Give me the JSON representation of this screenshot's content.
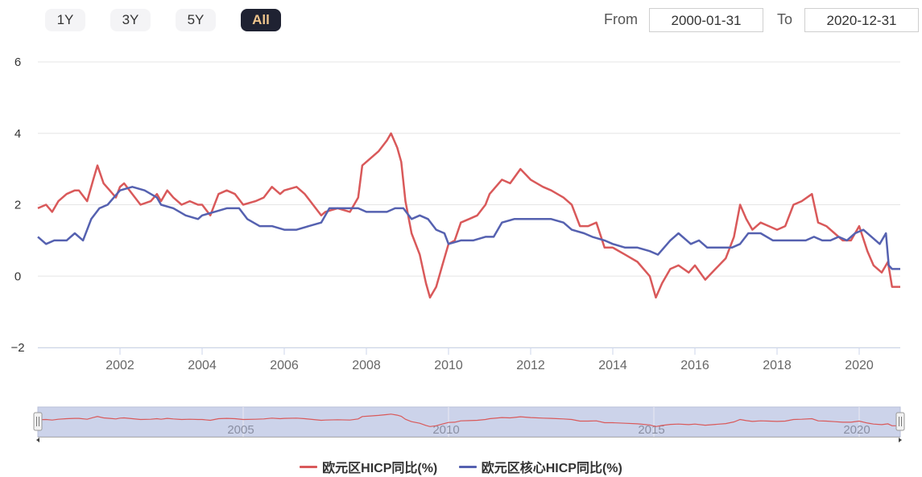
{
  "toolbar": {
    "range_buttons": [
      {
        "label": "1Y",
        "active": false
      },
      {
        "label": "3Y",
        "active": false
      },
      {
        "label": "5Y",
        "active": false
      },
      {
        "label": "All",
        "active": true
      }
    ],
    "from_label": "From",
    "from_value": "2000-01-31",
    "to_label": "To",
    "to_value": "2020-12-31"
  },
  "chart_data": {
    "type": "line",
    "xlim": [
      2000.0,
      2021.0
    ],
    "ylim": [
      -2,
      6
    ],
    "y_ticks": [
      "6",
      "4",
      "2",
      "0",
      "−2"
    ],
    "x_ticks": [
      "2002",
      "2004",
      "2006",
      "2008",
      "2010",
      "2012",
      "2014",
      "2016",
      "2018",
      "2020"
    ],
    "navigator_ticks": [
      "2005",
      "2010",
      "2015",
      "2020"
    ],
    "legend_position": "bottom",
    "grid": true,
    "series": [
      {
        "name": "欧元区HICP同比(%)",
        "color": "#d9595a",
        "points": [
          [
            2000.0,
            1.9
          ],
          [
            2000.2,
            2.0
          ],
          [
            2000.35,
            1.8
          ],
          [
            2000.5,
            2.1
          ],
          [
            2000.7,
            2.3
          ],
          [
            2000.9,
            2.4
          ],
          [
            2001.0,
            2.4
          ],
          [
            2001.2,
            2.1
          ],
          [
            2001.35,
            2.7
          ],
          [
            2001.45,
            3.1
          ],
          [
            2001.6,
            2.6
          ],
          [
            2001.75,
            2.4
          ],
          [
            2001.9,
            2.2
          ],
          [
            2002.0,
            2.5
          ],
          [
            2002.1,
            2.6
          ],
          [
            2002.3,
            2.3
          ],
          [
            2002.5,
            2.0
          ],
          [
            2002.75,
            2.1
          ],
          [
            2002.9,
            2.3
          ],
          [
            2003.0,
            2.1
          ],
          [
            2003.15,
            2.4
          ],
          [
            2003.3,
            2.2
          ],
          [
            2003.5,
            2.0
          ],
          [
            2003.7,
            2.1
          ],
          [
            2003.9,
            2.0
          ],
          [
            2004.0,
            2.0
          ],
          [
            2004.2,
            1.7
          ],
          [
            2004.4,
            2.3
          ],
          [
            2004.6,
            2.4
          ],
          [
            2004.8,
            2.3
          ],
          [
            2005.0,
            2.0
          ],
          [
            2005.3,
            2.1
          ],
          [
            2005.5,
            2.2
          ],
          [
            2005.7,
            2.5
          ],
          [
            2005.9,
            2.3
          ],
          [
            2006.0,
            2.4
          ],
          [
            2006.3,
            2.5
          ],
          [
            2006.5,
            2.3
          ],
          [
            2006.7,
            2.0
          ],
          [
            2006.9,
            1.7
          ],
          [
            2007.0,
            1.8
          ],
          [
            2007.3,
            1.9
          ],
          [
            2007.6,
            1.8
          ],
          [
            2007.8,
            2.2
          ],
          [
            2007.9,
            3.1
          ],
          [
            2008.1,
            3.3
          ],
          [
            2008.3,
            3.5
          ],
          [
            2008.5,
            3.8
          ],
          [
            2008.6,
            4.0
          ],
          [
            2008.75,
            3.6
          ],
          [
            2008.85,
            3.2
          ],
          [
            2008.95,
            2.1
          ],
          [
            2009.1,
            1.2
          ],
          [
            2009.3,
            0.6
          ],
          [
            2009.45,
            -0.2
          ],
          [
            2009.55,
            -0.6
          ],
          [
            2009.7,
            -0.3
          ],
          [
            2009.85,
            0.3
          ],
          [
            2010.0,
            0.9
          ],
          [
            2010.15,
            1.0
          ],
          [
            2010.3,
            1.5
          ],
          [
            2010.5,
            1.6
          ],
          [
            2010.7,
            1.7
          ],
          [
            2010.9,
            2.0
          ],
          [
            2011.0,
            2.3
          ],
          [
            2011.3,
            2.7
          ],
          [
            2011.5,
            2.6
          ],
          [
            2011.75,
            3.0
          ],
          [
            2012.0,
            2.7
          ],
          [
            2012.3,
            2.5
          ],
          [
            2012.5,
            2.4
          ],
          [
            2012.8,
            2.2
          ],
          [
            2013.0,
            2.0
          ],
          [
            2013.2,
            1.4
          ],
          [
            2013.4,
            1.4
          ],
          [
            2013.6,
            1.5
          ],
          [
            2013.8,
            0.8
          ],
          [
            2014.0,
            0.8
          ],
          [
            2014.3,
            0.6
          ],
          [
            2014.6,
            0.4
          ],
          [
            2014.9,
            0.0
          ],
          [
            2015.05,
            -0.6
          ],
          [
            2015.2,
            -0.2
          ],
          [
            2015.4,
            0.2
          ],
          [
            2015.6,
            0.3
          ],
          [
            2015.85,
            0.1
          ],
          [
            2016.0,
            0.3
          ],
          [
            2016.25,
            -0.1
          ],
          [
            2016.5,
            0.2
          ],
          [
            2016.75,
            0.5
          ],
          [
            2016.95,
            1.1
          ],
          [
            2017.1,
            2.0
          ],
          [
            2017.25,
            1.6
          ],
          [
            2017.4,
            1.3
          ],
          [
            2017.6,
            1.5
          ],
          [
            2017.8,
            1.4
          ],
          [
            2018.0,
            1.3
          ],
          [
            2018.2,
            1.4
          ],
          [
            2018.4,
            2.0
          ],
          [
            2018.6,
            2.1
          ],
          [
            2018.85,
            2.3
          ],
          [
            2019.0,
            1.5
          ],
          [
            2019.2,
            1.4
          ],
          [
            2019.4,
            1.2
          ],
          [
            2019.6,
            1.0
          ],
          [
            2019.8,
            1.0
          ],
          [
            2020.0,
            1.4
          ],
          [
            2020.2,
            0.7
          ],
          [
            2020.35,
            0.3
          ],
          [
            2020.55,
            0.1
          ],
          [
            2020.7,
            0.4
          ],
          [
            2020.8,
            -0.3
          ],
          [
            2021.0,
            -0.3
          ]
        ]
      },
      {
        "name": "欧元区核心HICP同比(%)",
        "color": "#5561b0",
        "points": [
          [
            2000.0,
            1.1
          ],
          [
            2000.2,
            0.9
          ],
          [
            2000.4,
            1.0
          ],
          [
            2000.7,
            1.0
          ],
          [
            2000.9,
            1.2
          ],
          [
            2001.1,
            1.0
          ],
          [
            2001.3,
            1.6
          ],
          [
            2001.5,
            1.9
          ],
          [
            2001.7,
            2.0
          ],
          [
            2002.0,
            2.4
          ],
          [
            2002.3,
            2.5
          ],
          [
            2002.6,
            2.4
          ],
          [
            2002.9,
            2.2
          ],
          [
            2003.0,
            2.0
          ],
          [
            2003.3,
            1.9
          ],
          [
            2003.6,
            1.7
          ],
          [
            2003.9,
            1.6
          ],
          [
            2004.0,
            1.7
          ],
          [
            2004.3,
            1.8
          ],
          [
            2004.6,
            1.9
          ],
          [
            2004.9,
            1.9
          ],
          [
            2005.1,
            1.6
          ],
          [
            2005.4,
            1.4
          ],
          [
            2005.7,
            1.4
          ],
          [
            2006.0,
            1.3
          ],
          [
            2006.3,
            1.3
          ],
          [
            2006.6,
            1.4
          ],
          [
            2006.9,
            1.5
          ],
          [
            2007.1,
            1.9
          ],
          [
            2007.5,
            1.9
          ],
          [
            2007.8,
            1.9
          ],
          [
            2008.0,
            1.8
          ],
          [
            2008.2,
            1.8
          ],
          [
            2008.5,
            1.8
          ],
          [
            2008.7,
            1.9
          ],
          [
            2008.9,
            1.9
          ],
          [
            2009.1,
            1.6
          ],
          [
            2009.3,
            1.7
          ],
          [
            2009.5,
            1.6
          ],
          [
            2009.7,
            1.3
          ],
          [
            2009.9,
            1.2
          ],
          [
            2010.0,
            0.9
          ],
          [
            2010.3,
            1.0
          ],
          [
            2010.6,
            1.0
          ],
          [
            2010.9,
            1.1
          ],
          [
            2011.1,
            1.1
          ],
          [
            2011.3,
            1.5
          ],
          [
            2011.6,
            1.6
          ],
          [
            2011.9,
            1.6
          ],
          [
            2012.2,
            1.6
          ],
          [
            2012.5,
            1.6
          ],
          [
            2012.8,
            1.5
          ],
          [
            2013.0,
            1.3
          ],
          [
            2013.3,
            1.2
          ],
          [
            2013.5,
            1.1
          ],
          [
            2013.8,
            1.0
          ],
          [
            2014.0,
            0.9
          ],
          [
            2014.3,
            0.8
          ],
          [
            2014.6,
            0.8
          ],
          [
            2014.9,
            0.7
          ],
          [
            2015.1,
            0.6
          ],
          [
            2015.4,
            1.0
          ],
          [
            2015.6,
            1.2
          ],
          [
            2015.9,
            0.9
          ],
          [
            2016.1,
            1.0
          ],
          [
            2016.3,
            0.8
          ],
          [
            2016.6,
            0.8
          ],
          [
            2016.9,
            0.8
          ],
          [
            2017.1,
            0.9
          ],
          [
            2017.3,
            1.2
          ],
          [
            2017.6,
            1.2
          ],
          [
            2017.9,
            1.0
          ],
          [
            2018.1,
            1.0
          ],
          [
            2018.4,
            1.0
          ],
          [
            2018.7,
            1.0
          ],
          [
            2018.9,
            1.1
          ],
          [
            2019.1,
            1.0
          ],
          [
            2019.3,
            1.0
          ],
          [
            2019.5,
            1.1
          ],
          [
            2019.7,
            1.0
          ],
          [
            2019.9,
            1.2
          ],
          [
            2020.1,
            1.3
          ],
          [
            2020.3,
            1.1
          ],
          [
            2020.5,
            0.9
          ],
          [
            2020.65,
            1.2
          ],
          [
            2020.72,
            0.3
          ],
          [
            2020.8,
            0.2
          ],
          [
            2021.0,
            0.2
          ]
        ]
      }
    ]
  }
}
